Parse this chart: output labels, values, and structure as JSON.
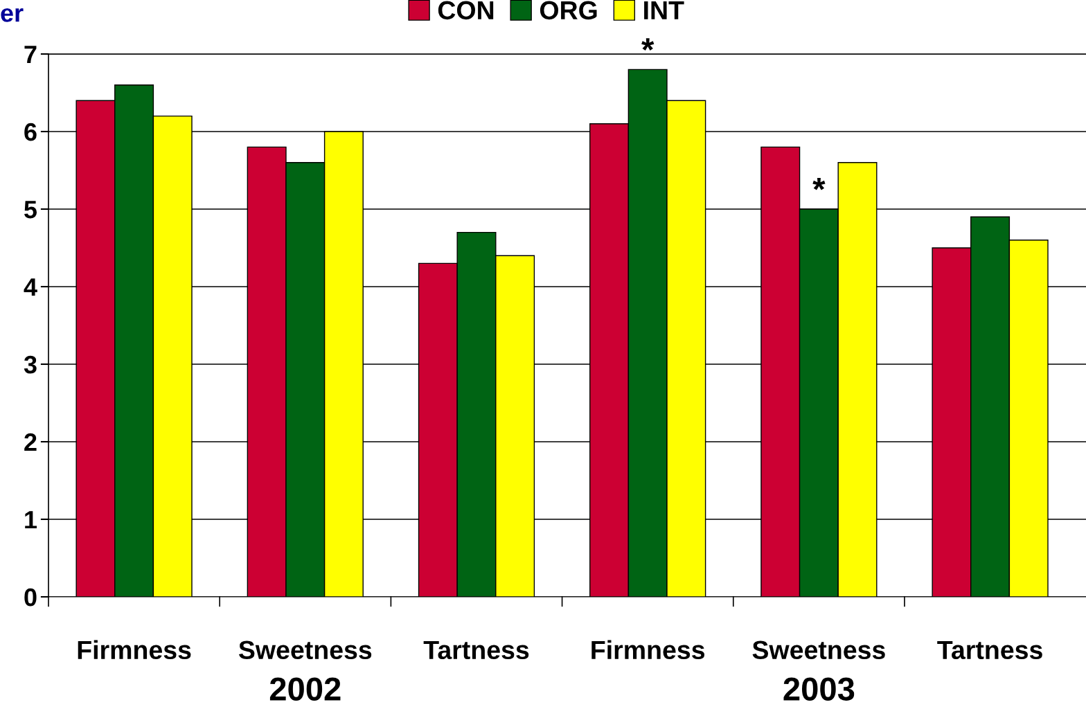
{
  "chart_data": {
    "type": "bar",
    "title": "er",
    "categories": [
      "Firmness",
      "Sweetness",
      "Tartness",
      "Firmness",
      "Sweetness",
      "Tartness"
    ],
    "series": [
      {
        "name": "CON",
        "color": "#cc0033",
        "values": [
          6.4,
          5.8,
          4.3,
          6.1,
          5.8,
          4.5
        ]
      },
      {
        "name": "ORG",
        "color": "#006414",
        "values": [
          6.6,
          5.6,
          4.7,
          6.8,
          5.0,
          4.9
        ]
      },
      {
        "name": "INT",
        "color": "#ffff00",
        "values": [
          6.2,
          6.0,
          4.4,
          6.4,
          5.6,
          4.6
        ]
      }
    ],
    "annotations": [
      {
        "text": "*",
        "y": 6.8
      },
      {
        "text": "*",
        "y": 5.0
      },
      "2002",
      "2003"
    ],
    "ylim": [
      0,
      7
    ],
    "yticks": [
      0,
      1,
      2,
      3,
      4,
      5,
      6,
      7
    ],
    "grid": "y",
    "legend": "top"
  }
}
